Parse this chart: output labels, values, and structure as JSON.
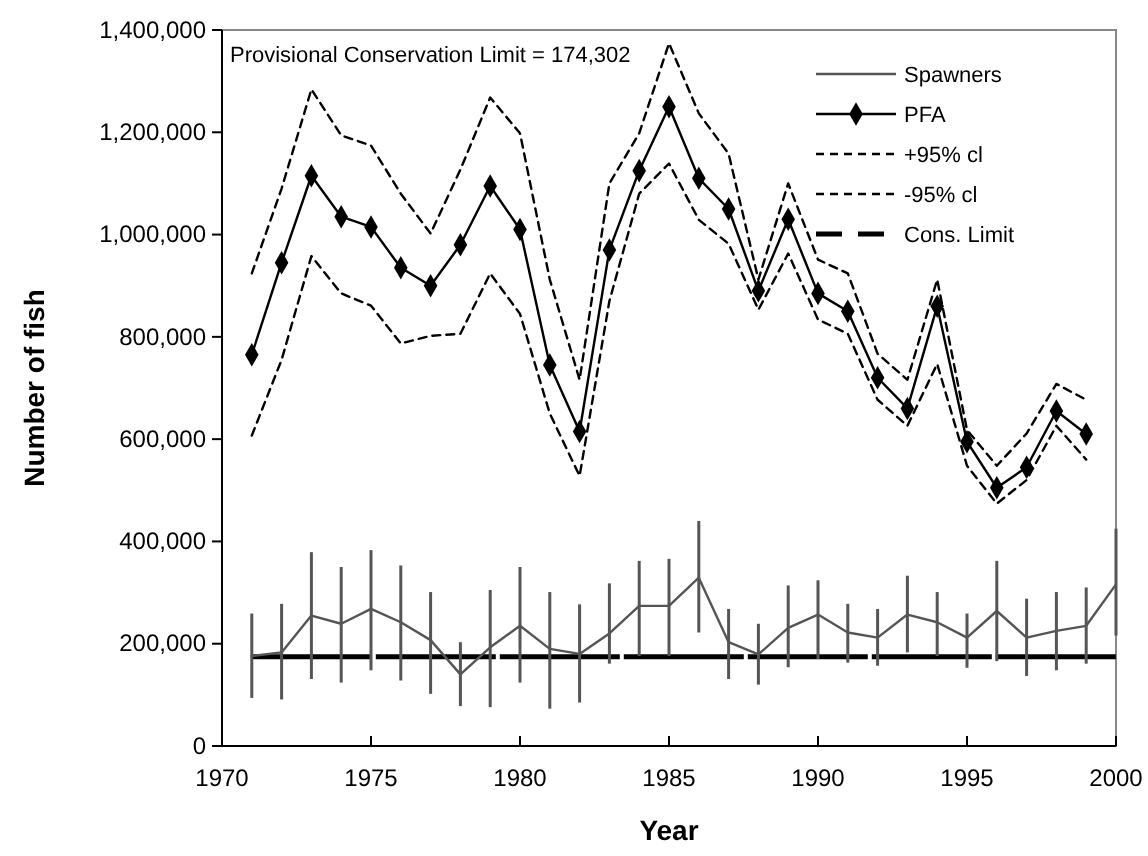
{
  "chart_data": {
    "type": "line",
    "xlabel": "Year",
    "ylabel": "Number of fish",
    "x": [
      1971,
      1972,
      1973,
      1974,
      1975,
      1976,
      1977,
      1978,
      1979,
      1980,
      1981,
      1982,
      1983,
      1984,
      1985,
      1986,
      1987,
      1988,
      1989,
      1990,
      1991,
      1992,
      1993,
      1994,
      1995,
      1996,
      1997,
      1998,
      1999,
      2000
    ],
    "series": [
      {
        "name": "Spawners",
        "color": "#555555",
        "marker": "none",
        "line_style": "solid",
        "values": [
          176000,
          183000,
          255000,
          239000,
          268000,
          242000,
          207000,
          140000,
          193000,
          235000,
          190000,
          180000,
          220000,
          274000,
          274000,
          329000,
          203000,
          179000,
          231000,
          257000,
          222000,
          212000,
          257000,
          242000,
          212000,
          264000,
          212000,
          225000,
          235000,
          316000
        ],
        "errors": [
          [
            94000,
            259000
          ],
          [
            91000,
            278000
          ],
          [
            131000,
            379000
          ],
          [
            124000,
            350000
          ],
          [
            148000,
            383000
          ],
          [
            128000,
            353000
          ],
          [
            102000,
            301000
          ],
          [
            78000,
            203000
          ],
          [
            76000,
            305000
          ],
          [
            124000,
            350000
          ],
          [
            73000,
            301000
          ],
          [
            85000,
            277000
          ],
          [
            161000,
            318000
          ],
          [
            176000,
            362000
          ],
          [
            176000,
            366000
          ],
          [
            222000,
            440000
          ],
          [
            131000,
            268000
          ],
          [
            120000,
            239000
          ],
          [
            154000,
            314000
          ],
          [
            170000,
            324000
          ],
          [
            163000,
            278000
          ],
          [
            157000,
            268000
          ],
          [
            183000,
            333000
          ],
          [
            176000,
            301000
          ],
          [
            153000,
            259000
          ],
          [
            166000,
            362000
          ],
          [
            137000,
            288000
          ],
          [
            148000,
            301000
          ],
          [
            161000,
            310000
          ],
          [
            216000,
            425000
          ]
        ]
      },
      {
        "name": "PFA",
        "color": "#000000",
        "marker": "diamond",
        "line_style": "solid",
        "values": [
          765000,
          945000,
          1115000,
          1035000,
          1015000,
          935000,
          900000,
          980000,
          1095000,
          1010000,
          745000,
          615000,
          970000,
          1125000,
          1250000,
          1110000,
          1050000,
          890000,
          1030000,
          885000,
          850000,
          720000,
          660000,
          860000,
          595000,
          505000,
          545000,
          655000,
          610000,
          null
        ]
      },
      {
        "name": "+95% cl",
        "color": "#000000",
        "marker": "none",
        "line_style": "dashed",
        "values": [
          924000,
          1090000,
          1284000,
          1194000,
          1174000,
          1080000,
          1002000,
          1127000,
          1268000,
          1198000,
          912000,
          716000,
          1100000,
          1198000,
          1374000,
          1237000,
          1158000,
          912000,
          1100000,
          951000,
          924000,
          767000,
          716000,
          912000,
          618000,
          548000,
          611000,
          708000,
          677000,
          null
        ]
      },
      {
        "name": "-95% cl",
        "color": "#000000",
        "marker": "none",
        "line_style": "dashed",
        "values": [
          607000,
          755000,
          958000,
          885000,
          861000,
          787000,
          802000,
          806000,
          924000,
          845000,
          650000,
          528000,
          870000,
          1080000,
          1139000,
          1029000,
          982000,
          853000,
          963000,
          834000,
          806000,
          677000,
          626000,
          747000,
          548000,
          474000,
          520000,
          626000,
          560000,
          null
        ]
      }
    ],
    "ref_lines": [
      {
        "axis": "y",
        "value": 174302,
        "label": "Cons. Limit",
        "color": "#000000",
        "line_style": "dashed"
      }
    ],
    "annotations": [
      "Provisional Conservation Limit = 174,302"
    ],
    "xlim": [
      1970,
      2000
    ],
    "xticks": [
      1970,
      1975,
      1980,
      1985,
      1990,
      1995,
      2000
    ],
    "ylim": [
      0,
      1400000
    ],
    "yticks": [
      0,
      {
        "value": 200000,
        "label": "200,000"
      },
      {
        "value": 400000,
        "label": "400,000"
      },
      {
        "value": 600000,
        "label": "600,000"
      },
      {
        "value": 800000,
        "label": "800,000"
      },
      {
        "value": 1000000,
        "label": "1,000,000"
      },
      {
        "value": 1200000,
        "label": "1,200,000"
      },
      {
        "value": 1400000,
        "label": "1,400,000"
      }
    ],
    "grid": false,
    "legend": "top right"
  }
}
